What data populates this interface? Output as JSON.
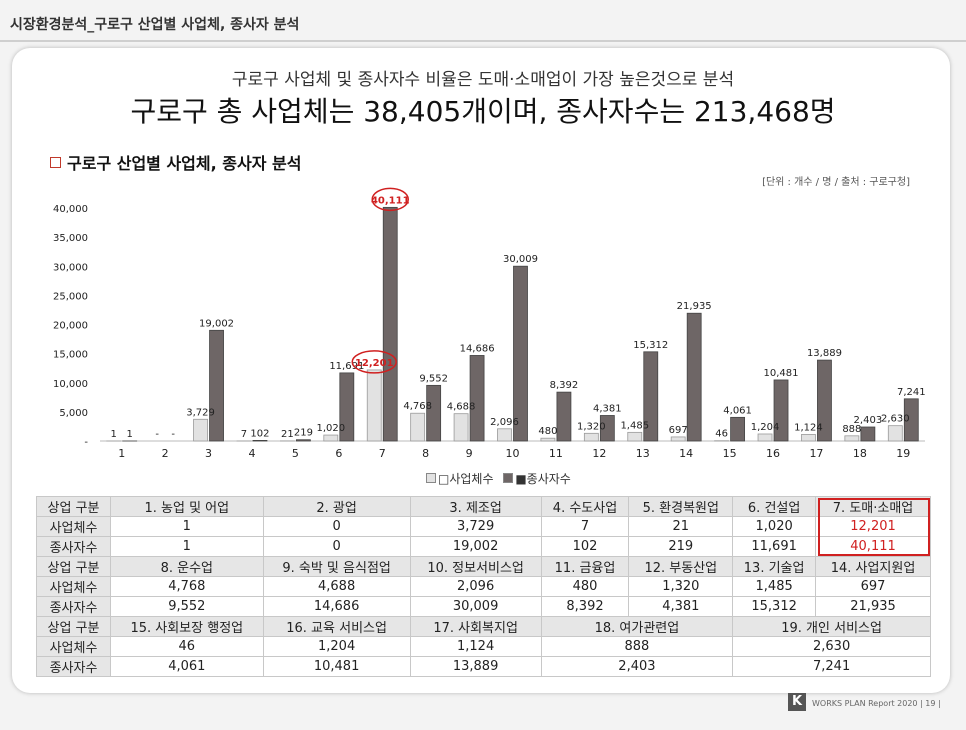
{
  "header": {
    "title": "시장환경분석_구로구 산업별 사업체, 종사자 분석"
  },
  "headline": {
    "sub": "구로구 사업체 및 종사자수 비율은 도매·소매업이 가장 높은것으로 분석",
    "main": "구로구 총 사업체는 38,405개이며, 종사자수는 213,468명"
  },
  "section": {
    "title": "구로구 산업별 사업체, 종사자 분석",
    "unit_note": "[단위 : 개수 / 명 / 출처 : 구로구청]"
  },
  "colors": {
    "series1": "#e2e2e2",
    "series2": "#6e6666",
    "highlight": "#d02020"
  },
  "chart_data": {
    "type": "bar",
    "categories": [
      "1",
      "2",
      "3",
      "4",
      "5",
      "6",
      "7",
      "8",
      "9",
      "10",
      "11",
      "12",
      "13",
      "14",
      "15",
      "16",
      "17",
      "18",
      "19"
    ],
    "series": [
      {
        "name": "사업체수",
        "values": [
          1,
          0,
          3729,
          7,
          21,
          1020,
          12201,
          4768,
          4688,
          2096,
          480,
          1320,
          1485,
          697,
          46,
          1204,
          1124,
          888,
          2630
        ],
        "labels": [
          "1",
          "-",
          "3,729",
          "7",
          "21",
          "1,020",
          "12,201",
          "4,768",
          "4,688",
          "2,096",
          "480",
          "1,320",
          "1,485",
          "697",
          "46",
          "1,204",
          "1,124",
          "888",
          "2,630"
        ]
      },
      {
        "name": "종사자수",
        "values": [
          1,
          0,
          19002,
          102,
          219,
          11691,
          40111,
          9552,
          14686,
          30009,
          8392,
          4381,
          15312,
          21935,
          4061,
          10481,
          13889,
          2403,
          7241
        ],
        "labels": [
          "1",
          "-",
          "19,002",
          "102",
          "219",
          "11,691",
          "40,111",
          "9,552",
          "14,686",
          "30,009",
          "8,392",
          "4,381",
          "15,312",
          "21,935",
          "4,061",
          "10,481",
          "13,889",
          "2,403",
          "7,241"
        ]
      }
    ],
    "yticks": [
      "-",
      "5,000",
      "10,000",
      "15,000",
      "20,000",
      "25,000",
      "30,000",
      "35,000",
      "40,000"
    ],
    "ylim": [
      0,
      40000
    ],
    "highlight_category": "7",
    "legend": [
      "□사업체수",
      "■종사자수"
    ],
    "legend_position": "bottom"
  },
  "table": {
    "groups": [
      {
        "header": "상업 구분",
        "rows": [
          "사업체수",
          "종사자수"
        ],
        "cols": [
          {
            "name": "1. 농업 및 어업",
            "v1": "1",
            "v2": "1"
          },
          {
            "name": "2. 광업",
            "v1": "0",
            "v2": "0"
          },
          {
            "name": "3. 제조업",
            "v1": "3,729",
            "v2": "19,002"
          },
          {
            "name": "4. 수도사업",
            "v1": "7",
            "v2": "102"
          },
          {
            "name": "5. 환경복원업",
            "v1": "21",
            "v2": "219"
          },
          {
            "name": "6. 건설업",
            "v1": "1,020",
            "v2": "11,691"
          },
          {
            "name": "7. 도매·소매업",
            "v1": "12,201",
            "v2": "40,111"
          }
        ]
      },
      {
        "header": "상업 구분",
        "rows": [
          "사업체수",
          "종사자수"
        ],
        "cols": [
          {
            "name": "8. 운수업",
            "v1": "4,768",
            "v2": "9,552"
          },
          {
            "name": "9. 숙박 및 음식점업",
            "v1": "4,688",
            "v2": "14,686"
          },
          {
            "name": "10. 정보서비스업",
            "v1": "2,096",
            "v2": "30,009"
          },
          {
            "name": "11. 금융업",
            "v1": "480",
            "v2": "8,392"
          },
          {
            "name": "12. 부동산업",
            "v1": "1,320",
            "v2": "4,381"
          },
          {
            "name": "13. 기술업",
            "v1": "1,485",
            "v2": "15,312"
          },
          {
            "name": "14. 사업지원업",
            "v1": "697",
            "v2": "21,935"
          }
        ]
      },
      {
        "header": "상업 구분",
        "rows": [
          "사업체수",
          "종사자수"
        ],
        "cols": [
          {
            "name": "15. 사회보장 행정업",
            "v1": "46",
            "v2": "4,061"
          },
          {
            "name": "16. 교육 서비스업",
            "v1": "1,204",
            "v2": "10,481"
          },
          {
            "name": "17. 사회복지업",
            "v1": "1,124",
            "v2": "13,889"
          },
          {
            "name": "18. 여가관련업",
            "v1": "888",
            "v2": "2,403"
          },
          {
            "name": "19. 개인 서비스업",
            "v1": "2,630",
            "v2": "7,241"
          }
        ]
      }
    ]
  },
  "footer": {
    "logo": "K",
    "text": "WORKS PLAN Report 2020 | 19 |"
  }
}
